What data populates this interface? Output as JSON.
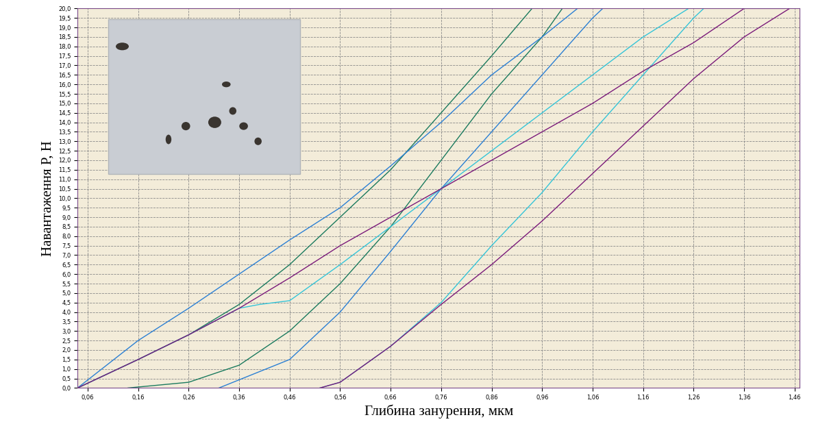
{
  "chart_data": {
    "type": "line",
    "xlabel": "Глибина занурення, мкм",
    "ylabel": "Навантаження P, Н",
    "xlim": [
      0.04,
      1.47
    ],
    "ylim": [
      0,
      20
    ],
    "grid": true,
    "xticks": [
      {
        "value": 0.06,
        "label": "0,06"
      },
      {
        "value": 0.16,
        "label": "0,16"
      },
      {
        "value": 0.26,
        "label": "0,26"
      },
      {
        "value": 0.36,
        "label": "0,36"
      },
      {
        "value": 0.46,
        "label": "0,46"
      },
      {
        "value": 0.56,
        "label": "0,56"
      },
      {
        "value": 0.66,
        "label": "0,66"
      },
      {
        "value": 0.76,
        "label": "0,76"
      },
      {
        "value": 0.86,
        "label": "0,86"
      },
      {
        "value": 0.96,
        "label": "0,96"
      },
      {
        "value": 1.06,
        "label": "1,06"
      },
      {
        "value": 1.16,
        "label": "1,16"
      },
      {
        "value": 1.26,
        "label": "1,26"
      },
      {
        "value": 1.36,
        "label": "1,36"
      },
      {
        "value": 1.46,
        "label": "1,46"
      }
    ],
    "yticks": [
      {
        "value": 0,
        "label": "0,0"
      },
      {
        "value": 0.5,
        "label": "0,5"
      },
      {
        "value": 1,
        "label": "1,0"
      },
      {
        "value": 1.5,
        "label": "1,5"
      },
      {
        "value": 2,
        "label": "2,0"
      },
      {
        "value": 2.5,
        "label": "2,5"
      },
      {
        "value": 3,
        "label": "3,0"
      },
      {
        "value": 3.5,
        "label": "3,5"
      },
      {
        "value": 4,
        "label": "4,0"
      },
      {
        "value": 4.5,
        "label": "4,5"
      },
      {
        "value": 5,
        "label": "5,0"
      },
      {
        "value": 5.5,
        "label": "5,5"
      },
      {
        "value": 6,
        "label": "6,0"
      },
      {
        "value": 6.5,
        "label": "6,5"
      },
      {
        "value": 7,
        "label": "7,0"
      },
      {
        "value": 7.5,
        "label": "7,5"
      },
      {
        "value": 8,
        "label": "8,0"
      },
      {
        "value": 8.5,
        "label": "8,5"
      },
      {
        "value": 9,
        "label": "9,0"
      },
      {
        "value": 9.5,
        "label": "9,5"
      },
      {
        "value": 10,
        "label": "10,0"
      },
      {
        "value": 10.5,
        "label": "10,5"
      },
      {
        "value": 11,
        "label": "11,0"
      },
      {
        "value": 11.5,
        "label": "11,5"
      },
      {
        "value": 12,
        "label": "12,0"
      },
      {
        "value": 12.5,
        "label": "12,5"
      },
      {
        "value": 13,
        "label": "13,0"
      },
      {
        "value": 13.5,
        "label": "13,5"
      },
      {
        "value": 14,
        "label": "14,0"
      },
      {
        "value": 14.5,
        "label": "14,5"
      },
      {
        "value": 15,
        "label": "15,0"
      },
      {
        "value": 15.5,
        "label": "15,5"
      },
      {
        "value": 16,
        "label": "16,0"
      },
      {
        "value": 16.5,
        "label": "16,5"
      },
      {
        "value": 17,
        "label": "17,0"
      },
      {
        "value": 17.5,
        "label": "17,5"
      },
      {
        "value": 18,
        "label": "18,0"
      },
      {
        "value": 18.5,
        "label": "18,5"
      },
      {
        "value": 19,
        "label": "19,0"
      },
      {
        "value": 19.5,
        "label": "19,5"
      },
      {
        "value": 20,
        "label": "20,0"
      }
    ],
    "series": [
      {
        "color": "#1a7a5e",
        "x": [
          0.04,
          0.16,
          0.26,
          0.36,
          0.46,
          0.56,
          0.66,
          0.76,
          0.86,
          0.94
        ],
        "values": [
          0,
          1.5,
          2.8,
          4.4,
          6.5,
          9,
          11.5,
          14.5,
          17.5,
          20
        ]
      },
      {
        "color": "#1a7a5e",
        "x": [
          0.14,
          0.26,
          0.36,
          0.46,
          0.56,
          0.66,
          0.76,
          0.86,
          0.96,
          1.0
        ],
        "values": [
          0,
          0.3,
          1.2,
          3.0,
          5.5,
          8.5,
          12,
          15.5,
          18.5,
          20
        ]
      },
      {
        "color": "#2a7fd4",
        "x": [
          0.04,
          0.16,
          0.26,
          0.36,
          0.46,
          0.56,
          0.66,
          0.76,
          0.86,
          0.96,
          1.03
        ],
        "values": [
          0,
          2.5,
          4.2,
          6,
          7.8,
          9.5,
          11.7,
          14,
          16.5,
          18.5,
          20
        ]
      },
      {
        "color": "#2a7fd4",
        "x": [
          0.32,
          0.46,
          0.56,
          0.66,
          0.76,
          0.86,
          0.96,
          1.06,
          1.08
        ],
        "values": [
          0,
          1.5,
          4,
          7.2,
          10.5,
          13.5,
          16.5,
          19.5,
          20
        ]
      },
      {
        "color": "#33c4d8",
        "x": [
          0.04,
          0.16,
          0.26,
          0.36,
          0.4,
          0.46,
          0.56,
          0.66,
          0.76,
          0.86,
          0.96,
          1.06,
          1.16,
          1.25
        ],
        "values": [
          0,
          1.5,
          2.8,
          4.2,
          4.4,
          4.6,
          6.5,
          8.5,
          10.5,
          12.5,
          14.5,
          16.5,
          18.5,
          20
        ]
      },
      {
        "color": "#33c4d8",
        "x": [
          0.52,
          0.56,
          0.66,
          0.76,
          0.86,
          0.96,
          1.06,
          1.16,
          1.26,
          1.28
        ],
        "values": [
          0,
          0.3,
          2.2,
          4.5,
          7.5,
          10.3,
          13.5,
          16.5,
          19.5,
          20
        ]
      },
      {
        "color": "#7a1a7a",
        "x": [
          0.04,
          0.16,
          0.26,
          0.36,
          0.46,
          0.56,
          0.66,
          0.76,
          0.86,
          0.96,
          1.06,
          1.16,
          1.26,
          1.36,
          1.44
        ],
        "values": [
          0,
          1.5,
          2.8,
          4.2,
          5.8,
          7.5,
          9,
          10.5,
          12,
          13.5,
          15,
          16.7,
          18.2,
          20,
          20
        ]
      },
      {
        "color": "#7a1a7a",
        "x": [
          0.52,
          0.56,
          0.66,
          0.76,
          0.86,
          0.96,
          1.06,
          1.16,
          1.26,
          1.36,
          1.45
        ],
        "values": [
          0,
          0.3,
          2.2,
          4.4,
          6.5,
          8.8,
          11.3,
          13.8,
          16.3,
          18.5,
          20
        ]
      }
    ]
  }
}
